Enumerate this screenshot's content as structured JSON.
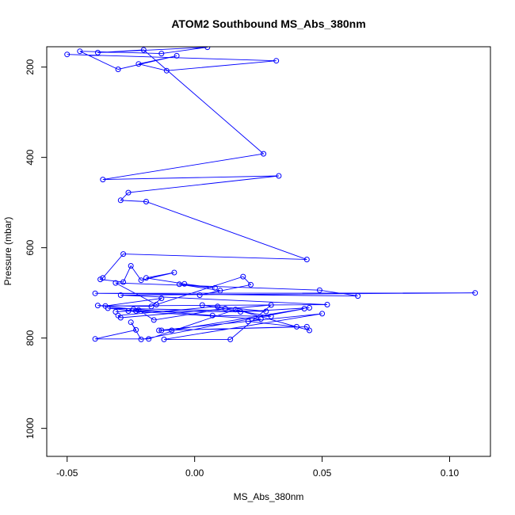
{
  "chart_data": {
    "type": "line",
    "title": "ATOM2 Southbound MS_Abs_380nm",
    "xlabel": "MS_Abs_380nm",
    "ylabel": "Pressure (mbar)",
    "xlim": [
      -0.058,
      0.116
    ],
    "ylim": [
      1062,
      155
    ],
    "y_reversed": true,
    "xticks": [
      -0.05,
      0.0,
      0.05,
      0.1
    ],
    "xtick_labels": [
      "-0.05",
      "0.00",
      "0.05",
      "0.10"
    ],
    "yticks": [
      200,
      400,
      600,
      800,
      1000
    ],
    "ytick_labels": [
      "200",
      "400",
      "600",
      "800",
      "1000"
    ],
    "grid": false,
    "legend": "none",
    "series_color": "#0000ff",
    "series": [
      {
        "x": [
          -0.05,
          0.032,
          -0.011,
          -0.022,
          -0.007,
          -0.03,
          -0.045,
          -0.013,
          0.005,
          -0.038,
          -0.02,
          0.027,
          -0.036,
          0.033,
          -0.026,
          -0.029,
          -0.019,
          0.044,
          -0.028,
          -0.036,
          -0.037,
          -0.028,
          -0.025,
          -0.021,
          -0.008,
          -0.019,
          -0.004,
          0.008,
          -0.006,
          0.01,
          0.002,
          0.022,
          0.019,
          -0.015,
          -0.031,
          0.049,
          0.064,
          -0.039,
          0.11,
          -0.029,
          0.052,
          -0.035,
          -0.013,
          -0.017,
          -0.038,
          -0.024,
          0.007,
          0.03,
          0.003,
          0.012,
          -0.016,
          -0.022,
          -0.031,
          -0.026,
          0.026,
          0.021,
          0.04,
          -0.013,
          0.044,
          0.045,
          0.016,
          -0.018,
          -0.039,
          -0.023,
          -0.025,
          -0.021,
          0.043,
          -0.009,
          -0.014,
          0.05,
          -0.012,
          0.014,
          0.03,
          -0.029,
          -0.03,
          0.009,
          0.028,
          -0.034,
          -0.023,
          0.018,
          0.045
        ],
        "y": [
          172,
          186,
          208,
          193,
          175,
          205,
          165,
          170,
          156,
          168,
          162,
          392,
          449,
          441,
          478,
          495,
          498,
          626,
          614,
          667,
          670,
          676,
          640,
          672,
          655,
          667,
          680,
          689,
          681,
          695,
          705,
          682,
          664,
          726,
          678,
          694,
          707,
          701,
          700,
          705,
          726,
          729,
          712,
          730,
          728,
          736,
          750,
          752,
          727,
          735,
          760,
          738,
          742,
          740,
          758,
          763,
          775,
          783,
          775,
          783,
          737,
          802,
          802,
          782,
          765,
          803,
          735,
          783,
          783,
          746,
          803,
          803,
          727,
          755,
          750,
          730,
          741,
          734,
          740,
          742,
          733
        ]
      }
    ]
  }
}
